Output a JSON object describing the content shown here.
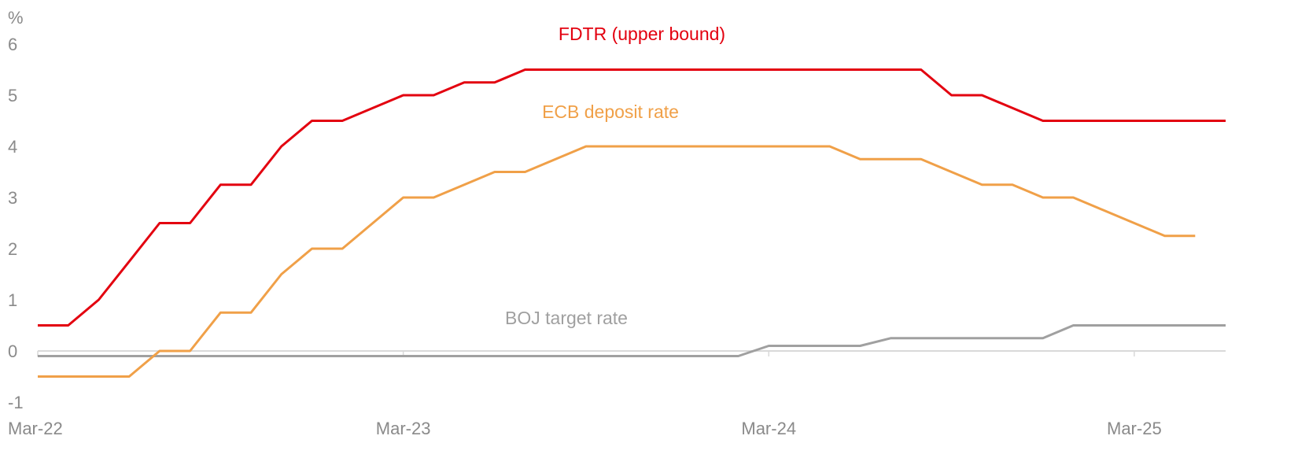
{
  "chart_data": {
    "type": "line",
    "title": "",
    "xlabel": "",
    "ylabel": "%",
    "ylim": [
      -1,
      6
    ],
    "yticks": [
      "-1",
      "0",
      "1",
      "2",
      "3",
      "4",
      "5",
      "6"
    ],
    "xtick_labels": [
      {
        "label": "Mar-22",
        "date": "2022-03"
      },
      {
        "label": "Mar-23",
        "date": "2023-03"
      },
      {
        "label": "Mar-24",
        "date": "2024-03"
      },
      {
        "label": "Mar-25",
        "date": "2025-03"
      }
    ],
    "xlim": [
      "2022-03",
      "2025-06"
    ],
    "grid": false,
    "zero_line": true,
    "series": [
      {
        "name": "FDTR (upper bound)",
        "color": "#e3000f",
        "points": [
          [
            "2022-03",
            0.5
          ],
          [
            "2022-04",
            0.5
          ],
          [
            "2022-05",
            1.0
          ],
          [
            "2022-06",
            1.75
          ],
          [
            "2022-07",
            2.5
          ],
          [
            "2022-08",
            2.5
          ],
          [
            "2022-09",
            3.25
          ],
          [
            "2022-10",
            3.25
          ],
          [
            "2022-11",
            4.0
          ],
          [
            "2022-12",
            4.5
          ],
          [
            "2023-01",
            4.5
          ],
          [
            "2023-02",
            4.75
          ],
          [
            "2023-03",
            5.0
          ],
          [
            "2023-04",
            5.0
          ],
          [
            "2023-05",
            5.25
          ],
          [
            "2023-06",
            5.25
          ],
          [
            "2023-07",
            5.5
          ],
          [
            "2023-08",
            5.5
          ],
          [
            "2023-09",
            5.5
          ],
          [
            "2023-10",
            5.5
          ],
          [
            "2023-11",
            5.5
          ],
          [
            "2023-12",
            5.5
          ],
          [
            "2024-01",
            5.5
          ],
          [
            "2024-02",
            5.5
          ],
          [
            "2024-03",
            5.5
          ],
          [
            "2024-04",
            5.5
          ],
          [
            "2024-05",
            5.5
          ],
          [
            "2024-06",
            5.5
          ],
          [
            "2024-07",
            5.5
          ],
          [
            "2024-08",
            5.5
          ],
          [
            "2024-09",
            5.0
          ],
          [
            "2024-10",
            5.0
          ],
          [
            "2024-11",
            4.75
          ],
          [
            "2024-12",
            4.5
          ],
          [
            "2025-01",
            4.5
          ],
          [
            "2025-02",
            4.5
          ],
          [
            "2025-03",
            4.5
          ],
          [
            "2025-04",
            4.5
          ],
          [
            "2025-05",
            4.5
          ],
          [
            "2025-06",
            4.5
          ]
        ]
      },
      {
        "name": "ECB deposit rate",
        "color": "#f0a048",
        "points": [
          [
            "2022-03",
            -0.5
          ],
          [
            "2022-04",
            -0.5
          ],
          [
            "2022-05",
            -0.5
          ],
          [
            "2022-06",
            -0.5
          ],
          [
            "2022-07",
            0.0
          ],
          [
            "2022-08",
            0.0
          ],
          [
            "2022-09",
            0.75
          ],
          [
            "2022-10",
            0.75
          ],
          [
            "2022-11",
            1.5
          ],
          [
            "2022-12",
            2.0
          ],
          [
            "2023-01",
            2.0
          ],
          [
            "2023-02",
            2.5
          ],
          [
            "2023-03",
            3.0
          ],
          [
            "2023-04",
            3.0
          ],
          [
            "2023-05",
            3.25
          ],
          [
            "2023-06",
            3.5
          ],
          [
            "2023-07",
            3.5
          ],
          [
            "2023-08",
            3.75
          ],
          [
            "2023-09",
            4.0
          ],
          [
            "2023-10",
            4.0
          ],
          [
            "2023-11",
            4.0
          ],
          [
            "2023-12",
            4.0
          ],
          [
            "2024-01",
            4.0
          ],
          [
            "2024-02",
            4.0
          ],
          [
            "2024-03",
            4.0
          ],
          [
            "2024-04",
            4.0
          ],
          [
            "2024-05",
            4.0
          ],
          [
            "2024-06",
            3.75
          ],
          [
            "2024-07",
            3.75
          ],
          [
            "2024-08",
            3.75
          ],
          [
            "2024-09",
            3.5
          ],
          [
            "2024-10",
            3.25
          ],
          [
            "2024-11",
            3.25
          ],
          [
            "2024-12",
            3.0
          ],
          [
            "2025-01",
            3.0
          ],
          [
            "2025-02",
            2.75
          ],
          [
            "2025-03",
            2.5
          ],
          [
            "2025-04",
            2.25
          ],
          [
            "2025-05",
            2.25
          ]
        ]
      },
      {
        "name": "BOJ target rate",
        "color": "#a0a0a0",
        "points": [
          [
            "2022-03",
            -0.1
          ],
          [
            "2023-03",
            -0.1
          ],
          [
            "2024-02",
            -0.1
          ],
          [
            "2024-03",
            0.1
          ],
          [
            "2024-04",
            0.1
          ],
          [
            "2024-05",
            0.1
          ],
          [
            "2024-06",
            0.1
          ],
          [
            "2024-07",
            0.25
          ],
          [
            "2024-08",
            0.25
          ],
          [
            "2024-09",
            0.25
          ],
          [
            "2024-10",
            0.25
          ],
          [
            "2024-11",
            0.25
          ],
          [
            "2024-12",
            0.25
          ],
          [
            "2025-01",
            0.5
          ],
          [
            "2025-02",
            0.5
          ],
          [
            "2025-03",
            0.5
          ],
          [
            "2025-04",
            0.5
          ],
          [
            "2025-05",
            0.5
          ],
          [
            "2025-06",
            0.5
          ]
        ]
      }
    ]
  }
}
